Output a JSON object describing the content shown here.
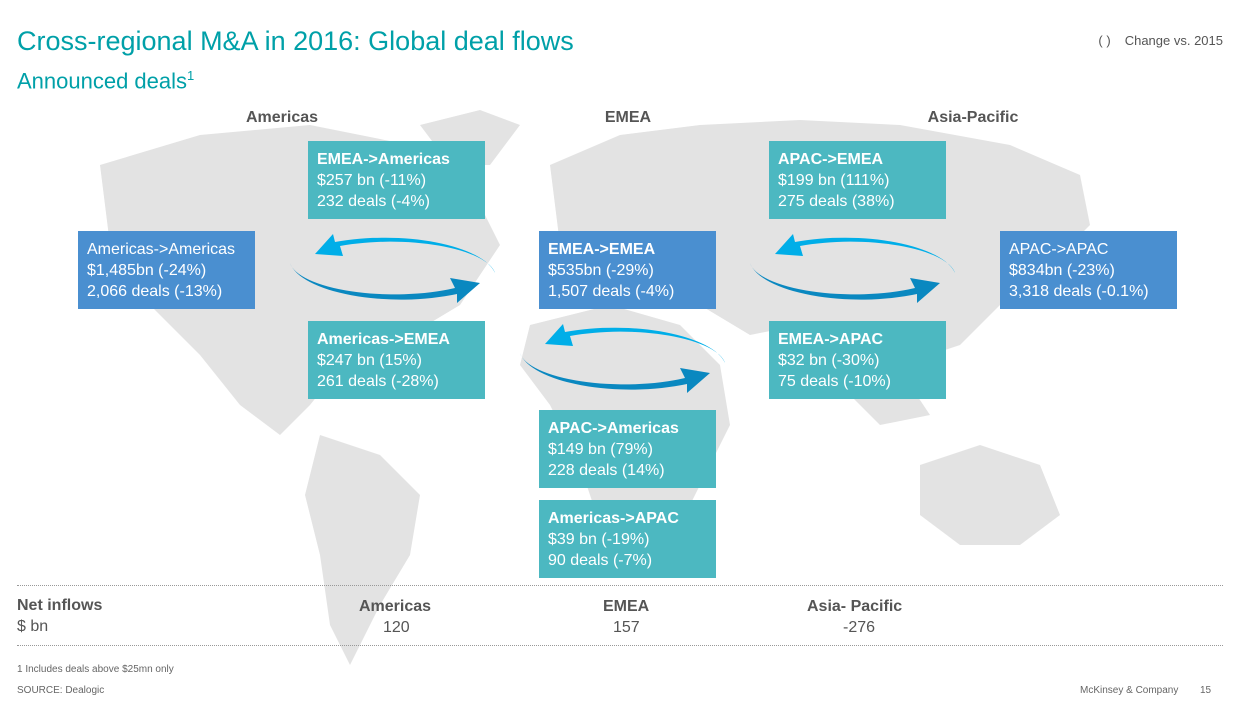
{
  "header": {
    "title": "Cross-regional M&A in 2016: Global deal flows",
    "subtitle": "Announced deals",
    "subtitle_sup": "1",
    "legend_symbol": "(   )",
    "legend_label": "Change vs. 2015"
  },
  "regions": {
    "americas": "Americas",
    "emea": "EMEA",
    "apac": "Asia-Pacific"
  },
  "flows": [
    {
      "label": "EMEA->Americas",
      "value": "$257 bn (-11%)",
      "deals": "232 deals (-4%)"
    },
    {
      "label": "Americas->Americas",
      "value": "$1,485bn (-24%)",
      "deals": "2,066 deals (-13%)"
    },
    {
      "label": "Americas->EMEA",
      "value": "$247 bn (15%)",
      "deals": "261 deals (-28%)"
    },
    {
      "label": "EMEA->EMEA",
      "value": "$535bn (-29%)",
      "deals": "1,507 deals (-4%)"
    },
    {
      "label": "APAC->EMEA",
      "value": "$199 bn (111%)",
      "deals": "275 deals (38%)"
    },
    {
      "label": "APAC->APAC",
      "value": "$834bn (-23%)",
      "deals": "3,318 deals (-0.1%)"
    },
    {
      "label": "EMEA->APAC",
      "value": "$32 bn (-30%)",
      "deals": "75 deals (-10%)"
    },
    {
      "label": "APAC->Americas",
      "value": "$149 bn (79%)",
      "deals": "228 deals (14%)"
    },
    {
      "label": "Americas->APAC",
      "value": "$39 bn (-19%)",
      "deals": "90 deals (-7%)"
    }
  ],
  "net_inflows": {
    "label": "Net inflows",
    "unit": "$ bn",
    "americas_label": "Americas",
    "americas": "120",
    "emea_label": "EMEA",
    "emea": "157",
    "apac_label": "Asia- Pacific",
    "apac": "-276"
  },
  "footer": {
    "note": "1 Includes deals above $25mn only",
    "source": "SOURCE: Dealogic",
    "company": "McKinsey & Company",
    "page": "15"
  },
  "colors": {
    "title": "#00a0a8",
    "teal_box": "#4cb8c1",
    "blue_box": "#4a8fd0",
    "arrow_light": "#00aee8",
    "arrow_dark": "#0a88c0"
  }
}
